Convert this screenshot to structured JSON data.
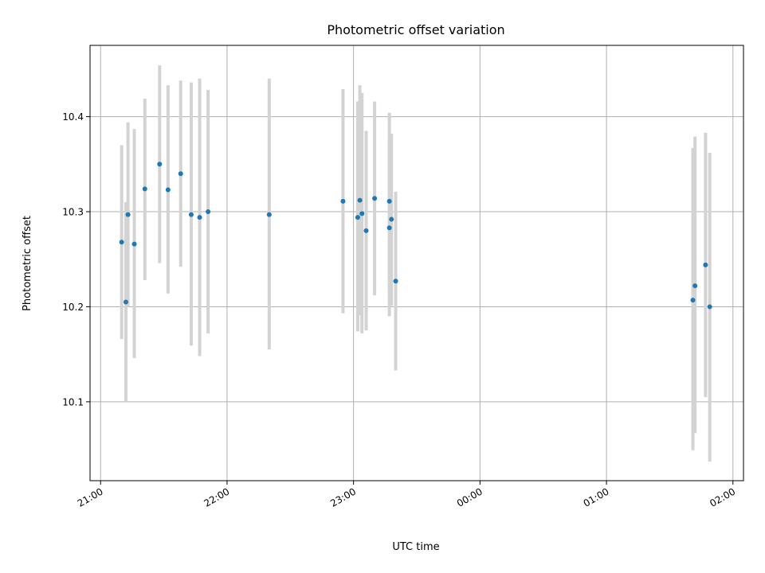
{
  "chart_data": {
    "type": "scatter",
    "title": "Photometric offset variation",
    "xlabel": "UTC time",
    "ylabel": "Photometric offset",
    "xlim": [
      "20:55",
      "02:05"
    ],
    "ylim": [
      10.017,
      10.475
    ],
    "xticks": [
      "21:00",
      "22:00",
      "23:00",
      "00:00",
      "01:00",
      "02:00"
    ],
    "yticks": [
      10.1,
      10.2,
      10.3,
      10.4
    ],
    "grid": true,
    "marker_color": "#1f77b4",
    "errorbar_color": "#d3d3d3",
    "points": [
      {
        "x": "21:10",
        "y": 10.268,
        "ylo": 10.166,
        "yhi": 10.37
      },
      {
        "x": "21:12",
        "y": 10.205,
        "ylo": 10.1,
        "yhi": 10.31
      },
      {
        "x": "21:13",
        "y": 10.297,
        "ylo": 10.2,
        "yhi": 10.394
      },
      {
        "x": "21:16",
        "y": 10.266,
        "ylo": 10.146,
        "yhi": 10.387
      },
      {
        "x": "21:21",
        "y": 10.324,
        "ylo": 10.228,
        "yhi": 10.419
      },
      {
        "x": "21:28",
        "y": 10.35,
        "ylo": 10.246,
        "yhi": 10.454
      },
      {
        "x": "21:32",
        "y": 10.323,
        "ylo": 10.214,
        "yhi": 10.433
      },
      {
        "x": "21:38",
        "y": 10.34,
        "ylo": 10.242,
        "yhi": 10.438
      },
      {
        "x": "21:43",
        "y": 10.297,
        "ylo": 10.159,
        "yhi": 10.436
      },
      {
        "x": "21:47",
        "y": 10.294,
        "ylo": 10.148,
        "yhi": 10.44
      },
      {
        "x": "21:51",
        "y": 10.3,
        "ylo": 10.172,
        "yhi": 10.428
      },
      {
        "x": "22:20",
        "y": 10.297,
        "ylo": 10.155,
        "yhi": 10.44
      },
      {
        "x": "22:55",
        "y": 10.311,
        "ylo": 10.193,
        "yhi": 10.429
      },
      {
        "x": "23:02",
        "y": 10.294,
        "ylo": 10.174,
        "yhi": 10.416
      },
      {
        "x": "23:03",
        "y": 10.312,
        "ylo": 10.191,
        "yhi": 10.433
      },
      {
        "x": "23:04",
        "y": 10.298,
        "ylo": 10.172,
        "yhi": 10.425
      },
      {
        "x": "23:06",
        "y": 10.28,
        "ylo": 10.175,
        "yhi": 10.385
      },
      {
        "x": "23:10",
        "y": 10.314,
        "ylo": 10.212,
        "yhi": 10.416
      },
      {
        "x": "23:17",
        "y": 10.311,
        "ylo": 10.219,
        "yhi": 10.404
      },
      {
        "x": "23:17",
        "y": 10.283,
        "ylo": 10.19,
        "yhi": 10.375
      },
      {
        "x": "23:18",
        "y": 10.292,
        "ylo": 10.201,
        "yhi": 10.382
      },
      {
        "x": "23:20",
        "y": 10.227,
        "ylo": 10.133,
        "yhi": 10.321
      },
      {
        "x": "01:41",
        "y": 10.207,
        "ylo": 10.049,
        "yhi": 10.367
      },
      {
        "x": "01:42",
        "y": 10.222,
        "ylo": 10.067,
        "yhi": 10.379
      },
      {
        "x": "01:47",
        "y": 10.244,
        "ylo": 10.105,
        "yhi": 10.383
      },
      {
        "x": "01:49",
        "y": 10.2,
        "ylo": 10.037,
        "yhi": 10.362
      }
    ]
  }
}
